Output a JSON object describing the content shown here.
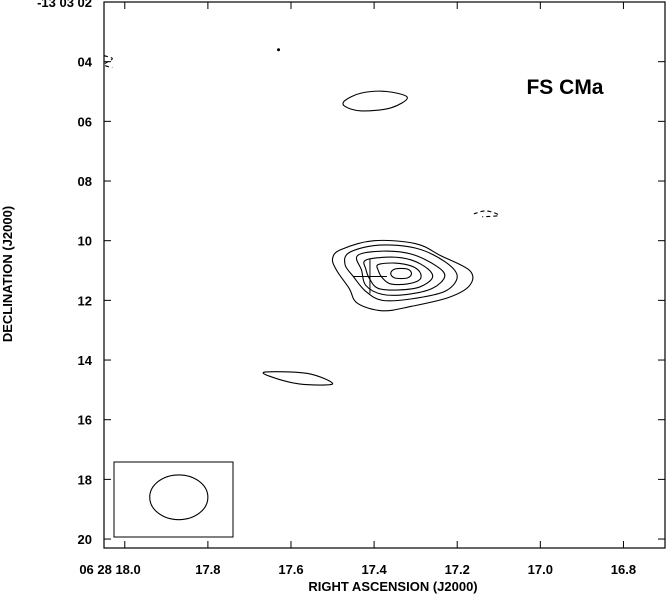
{
  "chart_data": {
    "type": "contour",
    "title": "FS CMa",
    "xlabel": "RIGHT ASCENSION (J2000)",
    "ylabel": "DECLINATION (J2000)",
    "x_prefix": "06 28",
    "y_prefix": "-13 03",
    "xlim": [
      18.05,
      16.7
    ],
    "ylim": [
      20.3,
      2.0
    ],
    "x_ticks": [
      {
        "value": 18.0,
        "label": "18.0"
      },
      {
        "value": 17.8,
        "label": "17.8"
      },
      {
        "value": 17.6,
        "label": "17.6"
      },
      {
        "value": 17.4,
        "label": "17.4"
      },
      {
        "value": 17.2,
        "label": "17.2"
      },
      {
        "value": 17.0,
        "label": "17.0"
      },
      {
        "value": 16.8,
        "label": "16.8"
      }
    ],
    "y_ticks": [
      {
        "value": 2,
        "label": "02"
      },
      {
        "value": 4,
        "label": "04"
      },
      {
        "value": 6,
        "label": "06"
      },
      {
        "value": 8,
        "label": "08"
      },
      {
        "value": 10,
        "label": "10"
      },
      {
        "value": 12,
        "label": "12"
      },
      {
        "value": 14,
        "label": "14"
      },
      {
        "value": 16,
        "label": "16"
      },
      {
        "value": 18,
        "label": "18"
      },
      {
        "value": 20,
        "label": "20"
      }
    ],
    "source_marker": {
      "ra": 17.41,
      "dec": 11.2
    },
    "beam": {
      "ra": 17.87,
      "dec": 18.6,
      "ra_radius": 0.07,
      "dec_radius": 0.75
    },
    "contours": [
      {
        "level": 1,
        "closed": true,
        "points": [
          [
            17.48,
            10.3
          ],
          [
            17.4,
            10.0
          ],
          [
            17.3,
            10.1
          ],
          [
            17.24,
            10.5
          ],
          [
            17.17,
            11.0
          ],
          [
            17.17,
            11.5
          ],
          [
            17.22,
            11.9
          ],
          [
            17.31,
            12.2
          ],
          [
            17.38,
            12.35
          ],
          [
            17.44,
            12.1
          ],
          [
            17.46,
            11.6
          ],
          [
            17.49,
            11.0
          ],
          [
            17.5,
            10.6
          ]
        ]
      },
      {
        "level": 2,
        "closed": true,
        "points": [
          [
            17.46,
            10.4
          ],
          [
            17.39,
            10.15
          ],
          [
            17.3,
            10.25
          ],
          [
            17.23,
            10.7
          ],
          [
            17.2,
            11.2
          ],
          [
            17.23,
            11.7
          ],
          [
            17.31,
            11.95
          ],
          [
            17.38,
            12.0
          ],
          [
            17.42,
            11.7
          ],
          [
            17.45,
            11.2
          ],
          [
            17.47,
            10.8
          ]
        ]
      },
      {
        "level": 3,
        "closed": true,
        "points": [
          [
            17.44,
            10.5
          ],
          [
            17.38,
            10.35
          ],
          [
            17.31,
            10.45
          ],
          [
            17.25,
            10.85
          ],
          [
            17.23,
            11.2
          ],
          [
            17.26,
            11.6
          ],
          [
            17.32,
            11.8
          ],
          [
            17.38,
            11.8
          ],
          [
            17.42,
            11.5
          ],
          [
            17.43,
            11.0
          ]
        ]
      },
      {
        "level": 4,
        "closed": true,
        "points": [
          [
            17.42,
            10.65
          ],
          [
            17.36,
            10.55
          ],
          [
            17.31,
            10.65
          ],
          [
            17.27,
            10.95
          ],
          [
            17.26,
            11.25
          ],
          [
            17.29,
            11.55
          ],
          [
            17.34,
            11.65
          ],
          [
            17.39,
            11.6
          ],
          [
            17.41,
            11.3
          ],
          [
            17.42,
            10.95
          ]
        ]
      },
      {
        "level": 5,
        "closed": true,
        "points": [
          [
            17.39,
            10.8
          ],
          [
            17.35,
            10.75
          ],
          [
            17.31,
            10.85
          ],
          [
            17.29,
            11.05
          ],
          [
            17.29,
            11.3
          ],
          [
            17.32,
            11.45
          ],
          [
            17.36,
            11.45
          ],
          [
            17.38,
            11.25
          ],
          [
            17.39,
            11.0
          ]
        ]
      },
      {
        "level": 6,
        "closed": true,
        "points": [
          [
            17.35,
            10.95
          ],
          [
            17.32,
            10.95
          ],
          [
            17.31,
            11.1
          ],
          [
            17.32,
            11.25
          ],
          [
            17.35,
            11.25
          ],
          [
            17.36,
            11.1
          ]
        ]
      },
      {
        "level": 1,
        "closed": true,
        "points": [
          [
            17.47,
            5.3
          ],
          [
            17.43,
            5.05
          ],
          [
            17.37,
            5.0
          ],
          [
            17.32,
            5.2
          ],
          [
            17.36,
            5.55
          ],
          [
            17.43,
            5.65
          ],
          [
            17.47,
            5.5
          ]
        ]
      },
      {
        "level": 1,
        "closed": true,
        "points": [
          [
            17.66,
            14.4
          ],
          [
            17.56,
            14.45
          ],
          [
            17.5,
            14.8
          ],
          [
            17.58,
            14.8
          ],
          [
            17.65,
            14.55
          ]
        ]
      }
    ],
    "negative_contours": [
      {
        "level": -1,
        "points": [
          [
            18.05,
            3.8
          ],
          [
            18.03,
            3.9
          ],
          [
            18.05,
            4.1
          ],
          [
            18.03,
            4.2
          ]
        ]
      },
      {
        "level": -1,
        "points": [
          [
            17.16,
            9.1
          ],
          [
            17.13,
            9.0
          ],
          [
            17.1,
            9.15
          ],
          [
            17.14,
            9.2
          ]
        ]
      }
    ],
    "dots": [
      {
        "ra": 17.63,
        "dec": 3.6
      }
    ]
  }
}
